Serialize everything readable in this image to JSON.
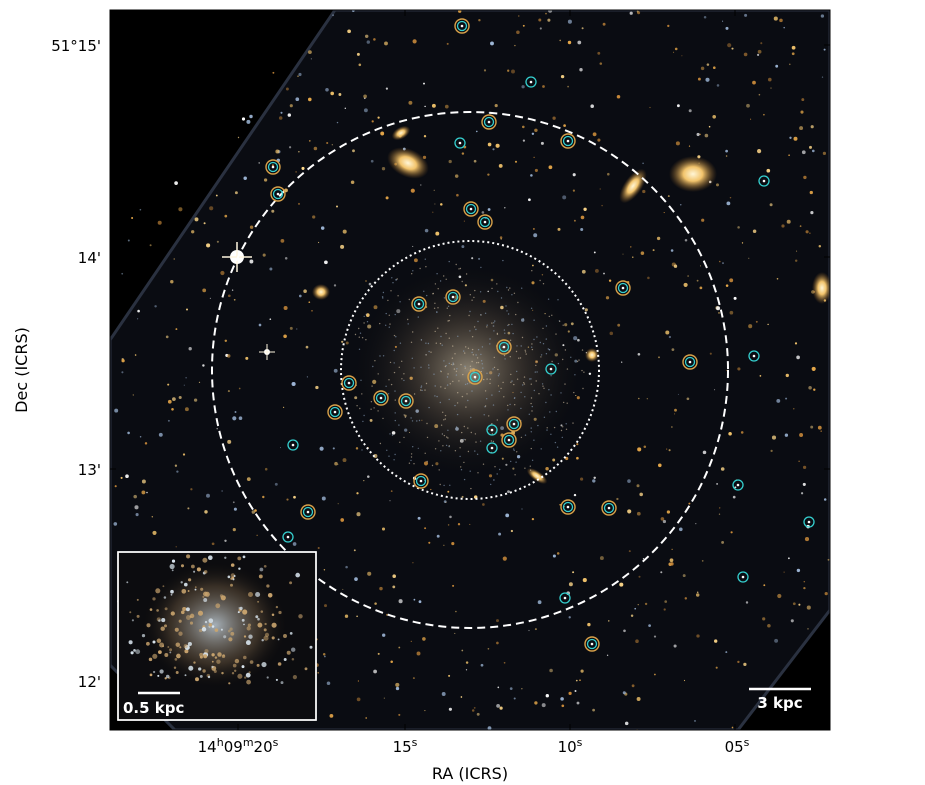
{
  "figure": {
    "xlabel": "RA (ICRS)",
    "ylabel": "Dec (ICRS)",
    "x_ticks": [
      {
        "prefix": "14",
        "sup1": "h",
        "mid": "09",
        "sup2": "m",
        "val": "20",
        "sup3": "s"
      },
      {
        "prefix": "",
        "sup1": "",
        "mid": "",
        "sup2": "",
        "val": "15",
        "sup3": "s"
      },
      {
        "prefix": "",
        "sup1": "",
        "mid": "",
        "sup2": "",
        "val": "10",
        "sup3": "s"
      },
      {
        "prefix": "",
        "sup1": "",
        "mid": "",
        "sup2": "",
        "val": "05",
        "sup3": "s"
      }
    ],
    "y_ticks": [
      "51°15'",
      "14'",
      "13'",
      "12'"
    ],
    "scale_bar_main": "3 kpc",
    "scale_bar_inset": "0.5 kpc",
    "colors": {
      "background": "#06070b",
      "orange_marker": "#d9a24a",
      "cyan_marker": "#35d0cf",
      "circles": "#ffffff"
    }
  }
}
